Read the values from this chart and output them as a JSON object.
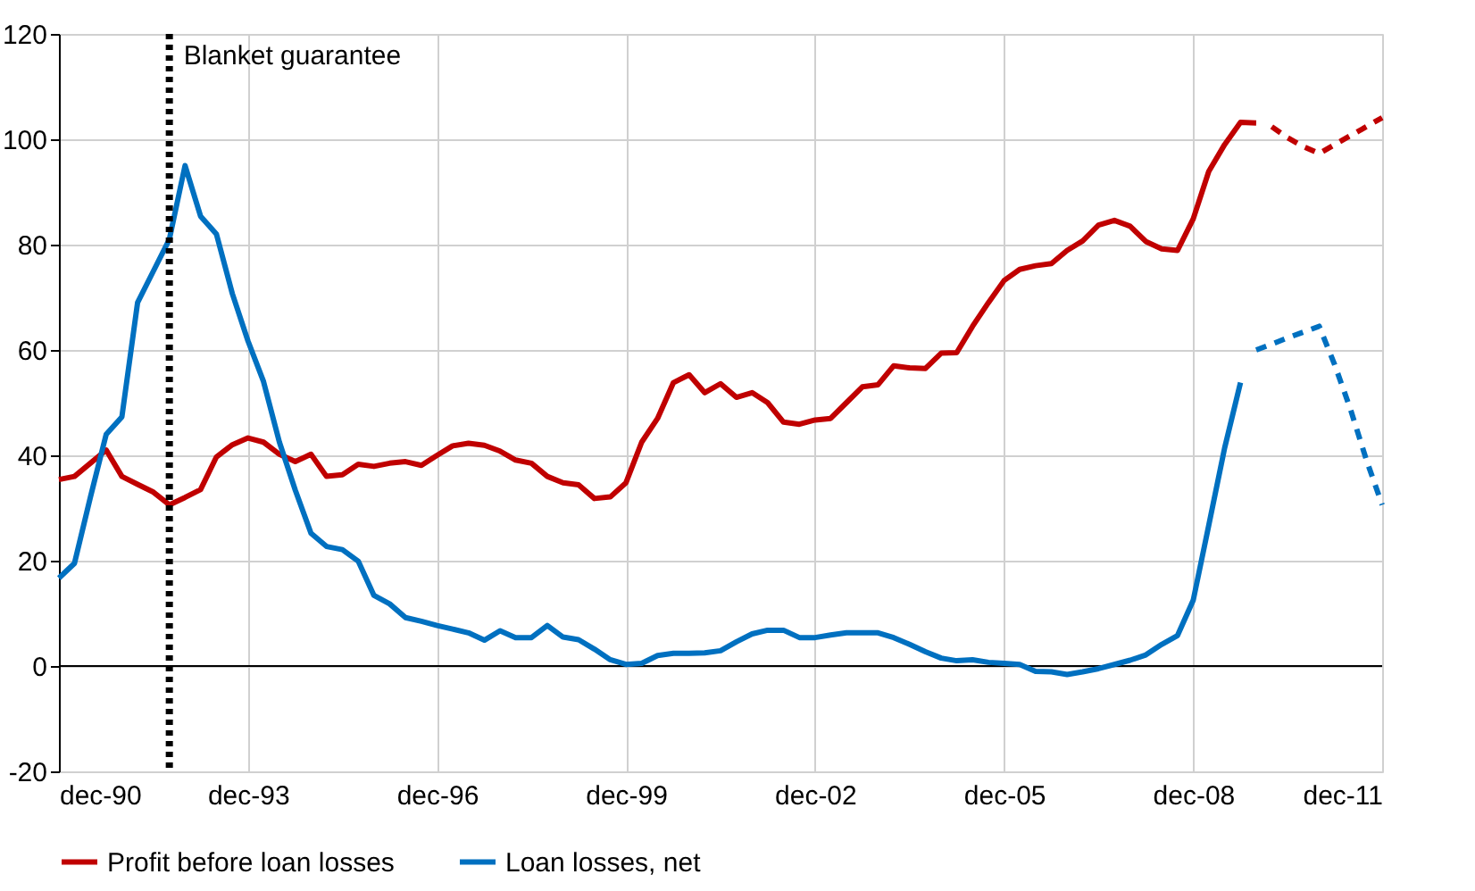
{
  "chart_data": {
    "type": "line",
    "x": [
      "1990-12",
      "1991-03",
      "1991-06",
      "1991-09",
      "1991-12",
      "1992-03",
      "1992-06",
      "1992-09",
      "1992-12",
      "1993-03",
      "1993-06",
      "1993-09",
      "1993-12",
      "1994-03",
      "1994-06",
      "1994-09",
      "1994-12",
      "1995-03",
      "1995-06",
      "1995-09",
      "1995-12",
      "1996-03",
      "1996-06",
      "1996-09",
      "1996-12",
      "1997-03",
      "1997-06",
      "1997-09",
      "1997-12",
      "1998-03",
      "1998-06",
      "1998-09",
      "1998-12",
      "1999-03",
      "1999-06",
      "1999-09",
      "1999-12",
      "2000-03",
      "2000-06",
      "2000-09",
      "2000-12",
      "2001-03",
      "2001-06",
      "2001-09",
      "2001-12",
      "2002-03",
      "2002-06",
      "2002-09",
      "2002-12",
      "2003-03",
      "2003-06",
      "2003-09",
      "2003-12",
      "2004-03",
      "2004-06",
      "2004-09",
      "2004-12",
      "2005-03",
      "2005-06",
      "2005-09",
      "2005-12",
      "2006-03",
      "2006-06",
      "2006-09",
      "2006-12",
      "2007-03",
      "2007-06",
      "2007-09",
      "2007-12",
      "2008-03",
      "2008-06",
      "2008-09",
      "2008-12",
      "2009-03",
      "2009-06",
      "2009-09",
      "2009-12"
    ],
    "series": [
      {
        "name": "Profit before loan losses",
        "color": "#c00000",
        "line_style": "solid",
        "values": [
          35.4,
          36,
          38.5,
          41,
          36,
          34.5,
          33,
          30.6,
          32,
          33.5,
          39.7,
          42,
          43.3,
          42.5,
          40.2,
          38.8,
          40.2,
          36,
          36.3,
          38.3,
          37.9,
          38.5,
          38.8,
          38.1,
          40,
          41.8,
          42.3,
          41.9,
          40.8,
          39.1,
          38.5,
          36,
          34.8,
          34.4,
          31.8,
          32.1,
          34.8,
          42.5,
          47,
          53.8,
          55.3,
          51.9,
          53.6,
          51,
          51.9,
          50,
          46.3,
          45.9,
          46.7,
          47,
          50,
          53,
          53.4,
          57,
          56.6,
          56.5,
          59.4,
          59.5,
          64.5,
          69,
          73.2,
          75.3,
          76,
          76.4,
          78.9,
          80.7,
          83.7,
          84.6,
          83.5,
          80.6,
          79.2,
          78.9,
          84.9,
          93.9,
          99,
          103.2,
          103.1
        ]
      },
      {
        "name": "Loan losses, net",
        "color": "#0070c0",
        "line_style": "solid",
        "values": [
          16.7,
          19.5,
          32,
          44,
          47.3,
          69,
          75,
          81,
          95,
          85.4,
          82,
          70.7,
          61.7,
          54,
          42.5,
          33.4,
          25.2,
          22.7,
          22.1,
          19.9,
          13.4,
          11.8,
          9.2,
          8.5,
          7.7,
          7,
          6.3,
          4.9,
          6.7,
          5.4,
          5.4,
          7.7,
          5.5,
          5,
          3.2,
          1.2,
          0.3,
          0.5,
          2,
          2.4,
          2.4,
          2.5,
          2.9,
          4.6,
          6.1,
          6.8,
          6.8,
          5.4,
          5.4,
          5.9,
          6.3,
          6.3,
          6.3,
          5.4,
          4.1,
          2.7,
          1.5,
          1,
          1.2,
          0.7,
          0.5,
          0.3,
          -1,
          -1.1,
          -1.6,
          -1.1,
          -0.5,
          0.3,
          1.1,
          2.1,
          4.1,
          5.8,
          12.5,
          26.7,
          41.4,
          53.8,
          null
        ]
      },
      {
        "color": "#c00000",
        "line_style": "dashed",
        "x": [
          "2010-03",
          "2010-06",
          "2010-09",
          "2010-12",
          "2011-03",
          "2011-06",
          "2011-09",
          "2011-12"
        ],
        "values": [
          102.4,
          100.3,
          98.6,
          97.3,
          99,
          100.7,
          102.4,
          104.1
        ]
      },
      {
        "color": "#0070c0",
        "line_style": "dashed",
        "x": [
          "2009-12",
          "2010-03",
          "2010-06",
          "2010-09",
          "2010-12",
          "2011-03",
          "2011-06",
          "2011-09",
          "2011-12"
        ],
        "values": [
          60,
          61.1,
          62.3,
          63.4,
          64.5,
          57.2,
          48.7,
          39.1,
          30.6
        ]
      }
    ],
    "xlim": [
      "1990-12",
      "2011-12"
    ],
    "xticks": [
      {
        "value": "1990-12",
        "label": "dec-90"
      },
      {
        "value": "1993-12",
        "label": "dec-93"
      },
      {
        "value": "1996-12",
        "label": "dec-96"
      },
      {
        "value": "1999-12",
        "label": "dec-99"
      },
      {
        "value": "2002-12",
        "label": "dec-02"
      },
      {
        "value": "2005-12",
        "label": "dec-05"
      },
      {
        "value": "2008-12",
        "label": "dec-08"
      },
      {
        "value": "2011-12",
        "label": "dec-11"
      }
    ],
    "ylim": [
      -20,
      120
    ],
    "yticks": [
      -20,
      0,
      20,
      40,
      60,
      80,
      100,
      120
    ],
    "ref_lines": [
      {
        "axis": "x",
        "value": "1992-09",
        "label": "Blanket guarantee",
        "color": "#000000",
        "line_style": "dotted"
      }
    ],
    "grid": true,
    "legend": "bottom",
    "marker": "none"
  }
}
